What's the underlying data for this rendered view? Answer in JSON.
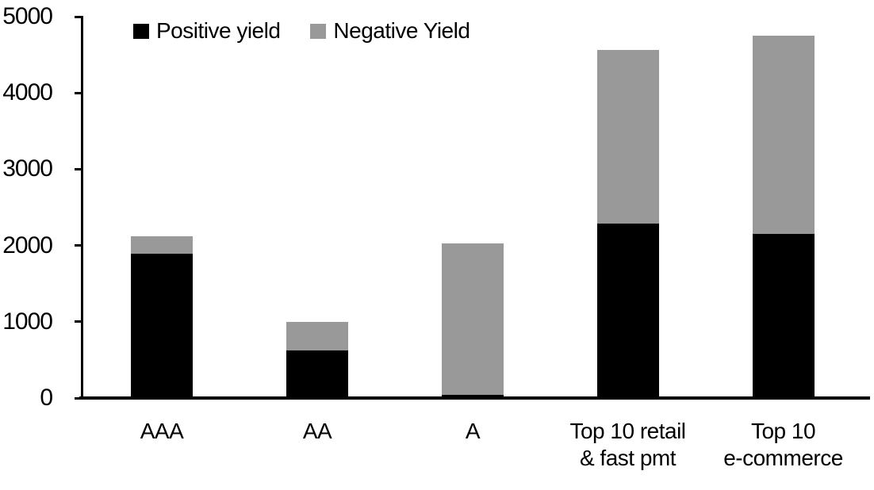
{
  "chart_data": {
    "type": "bar",
    "stacked": true,
    "title": "",
    "xlabel": "",
    "ylabel": "",
    "categories": [
      "AAA",
      "AA",
      "A",
      "Top 10 retail\n& fast pmt",
      "Top 10\ne-commerce"
    ],
    "series": [
      {
        "name": "Positive yield",
        "color": "#000000",
        "values": [
          1890,
          620,
          40,
          2290,
          2150
        ]
      },
      {
        "name": "Negative Yield",
        "color": "#999999",
        "values": [
          230,
          380,
          1990,
          2270,
          2600
        ]
      }
    ],
    "totals": [
      2120,
      1000,
      2030,
      4560,
      4750
    ],
    "ylim": [
      0,
      5000
    ],
    "yticks": [
      0,
      1000,
      2000,
      3000,
      4000,
      5000
    ],
    "grid": false,
    "legend_position": "top",
    "axis_color": "#000000",
    "background": "#ffffff"
  }
}
